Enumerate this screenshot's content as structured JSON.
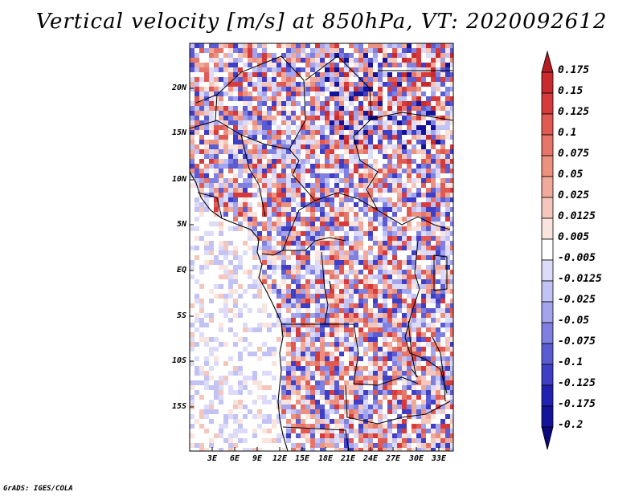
{
  "title": "Vertical velocity [m/s] at 850hPa, VT: 2020092612",
  "map": {
    "region": "Central Africa",
    "lat_labels": [
      "20N",
      "15N",
      "10N",
      "5N",
      "EQ",
      "5S",
      "10S",
      "15S"
    ],
    "lon_labels": [
      "3E",
      "6E",
      "9E",
      "12E",
      "15E",
      "18E",
      "21E",
      "24E",
      "27E",
      "30E",
      "33E"
    ]
  },
  "colorbar": {
    "labels": [
      "0.175",
      "0.15",
      "0.125",
      "0.1",
      "0.075",
      "0.05",
      "0.025",
      "0.0125",
      "0.005",
      "-0.005",
      "-0.0125",
      "-0.025",
      "-0.05",
      "-0.075",
      "-0.1",
      "-0.125",
      "-0.175",
      "-0.2"
    ],
    "colors": [
      "#b51d22",
      "#c82a2e",
      "#d73a3a",
      "#e05a52",
      "#e6766a",
      "#ec9080",
      "#f1aa9a",
      "#f5c6bb",
      "#fae4de",
      "#ffffff",
      "#dcdcfa",
      "#c2c2f4",
      "#a4a4ec",
      "#8080e0",
      "#5c5cd2",
      "#3e3ec6",
      "#2222b2",
      "#14149a",
      "#0a0a7c"
    ]
  },
  "credit": "GrADS: IGES/COLA"
}
